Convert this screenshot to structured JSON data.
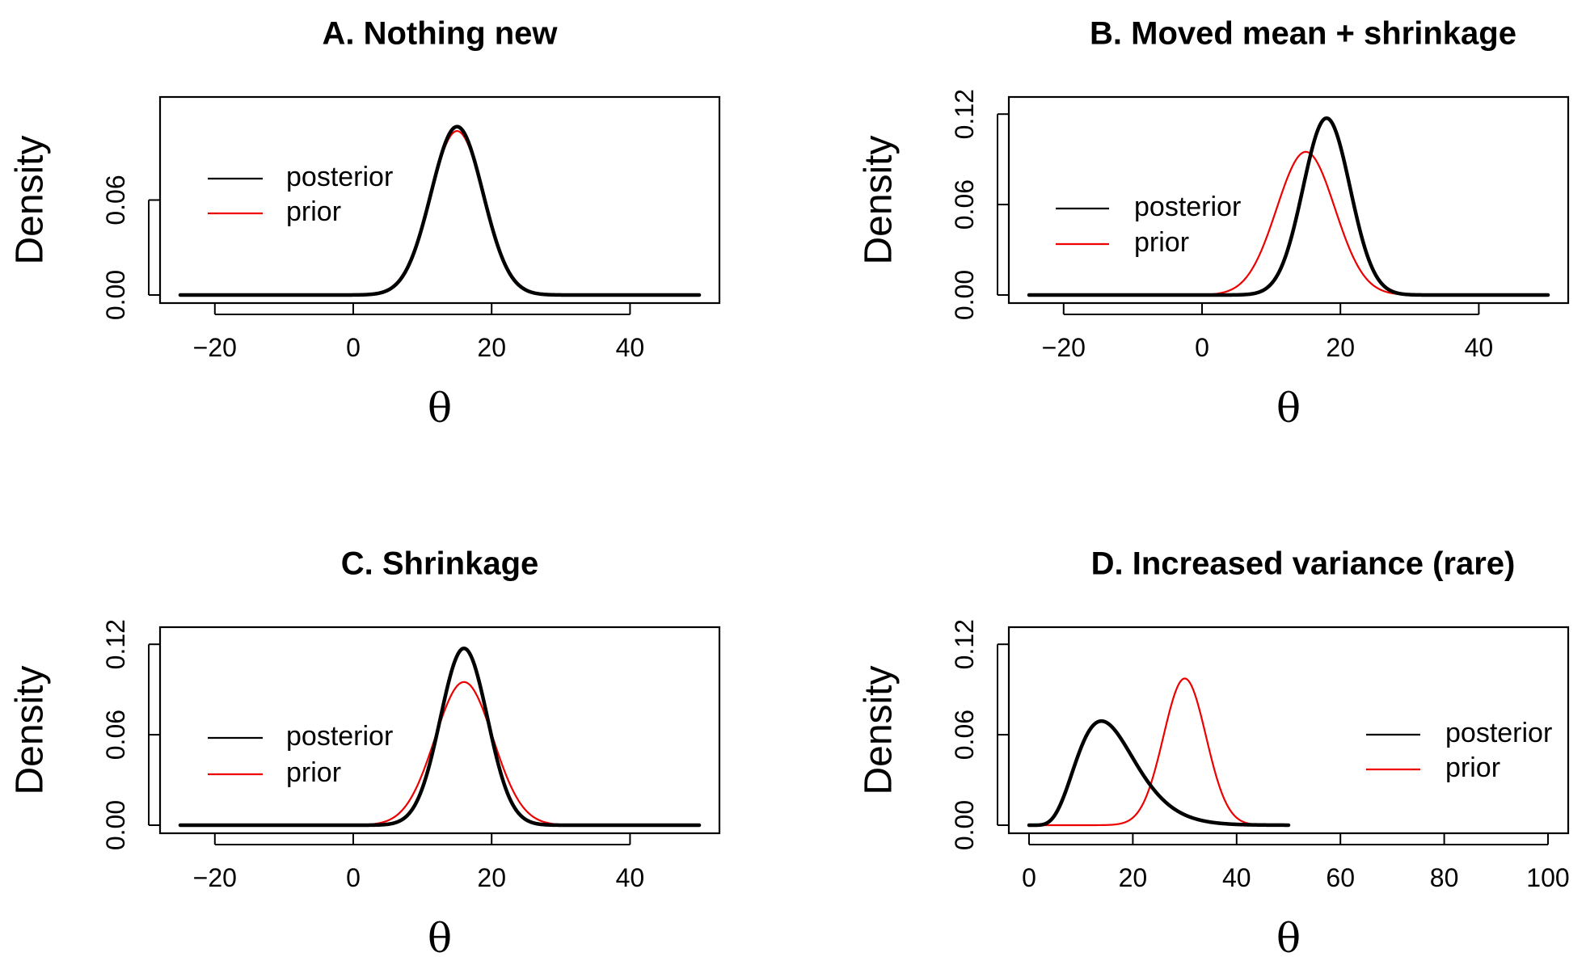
{
  "chart_data": [
    {
      "type": "line",
      "title": "A. Nothing new",
      "xlabel": "θ",
      "ylabel": "Density",
      "xlim": [
        -25,
        50
      ],
      "ylim": [
        0,
        0.12
      ],
      "xticks": [
        -20,
        0,
        20,
        40
      ],
      "xtick_labels": [
        "−20",
        "0",
        "20",
        "40"
      ],
      "yticks": [
        0,
        0.06
      ],
      "ytick_labels": [
        "0.00",
        "0.06"
      ],
      "legend": {
        "position": "left",
        "entries": [
          {
            "label": "posterior",
            "color": "#000000"
          },
          {
            "label": "prior",
            "color": "#ee0000"
          }
        ]
      },
      "series": [
        {
          "name": "posterior",
          "color": "#000000",
          "line_width": "thick",
          "distribution": "normal",
          "mean": 15,
          "sd": 3.75,
          "x_range": [
            -25,
            50
          ]
        },
        {
          "name": "prior",
          "color": "#ee0000",
          "line_width": "thin",
          "distribution": "normal",
          "mean": 15,
          "sd": 3.85,
          "x_range": [
            -25,
            50
          ]
        }
      ]
    },
    {
      "type": "line",
      "title": "B. Moved mean + shrinkage",
      "xlabel": "θ",
      "ylabel": "Density",
      "xlim": [
        -25,
        50
      ],
      "ylim": [
        0,
        0.126
      ],
      "xticks": [
        -20,
        0,
        20,
        40
      ],
      "xtick_labels": [
        "−20",
        "0",
        "20",
        "40"
      ],
      "yticks": [
        0,
        0.06,
        0.12
      ],
      "ytick_labels": [
        "0.00",
        "0.06",
        "0.12"
      ],
      "legend": {
        "position": "left",
        "entries": [
          {
            "label": "posterior",
            "color": "#000000"
          },
          {
            "label": "prior",
            "color": "#ee0000"
          }
        ]
      },
      "series": [
        {
          "name": "posterior",
          "color": "#000000",
          "line_width": "thick",
          "distribution": "normal",
          "mean": 18,
          "sd": 3.4,
          "x_range": [
            -25,
            50
          ]
        },
        {
          "name": "prior",
          "color": "#ee0000",
          "line_width": "thin",
          "distribution": "normal",
          "mean": 15,
          "sd": 4.2,
          "x_range": [
            -25,
            50
          ]
        }
      ]
    },
    {
      "type": "line",
      "title": "C. Shrinkage",
      "xlabel": "θ",
      "ylabel": "Density",
      "xlim": [
        -25,
        50
      ],
      "ylim": [
        0,
        0.126
      ],
      "xticks": [
        -20,
        0,
        20,
        40
      ],
      "xtick_labels": [
        "−20",
        "0",
        "20",
        "40"
      ],
      "yticks": [
        0,
        0.06,
        0.12
      ],
      "ytick_labels": [
        "0.00",
        "0.06",
        "0.12"
      ],
      "legend": {
        "position": "left",
        "entries": [
          {
            "label": "posterior",
            "color": "#000000"
          },
          {
            "label": "prior",
            "color": "#ee0000"
          }
        ]
      },
      "series": [
        {
          "name": "posterior",
          "color": "#000000",
          "line_width": "thick",
          "distribution": "normal",
          "mean": 16,
          "sd": 3.4,
          "x_range": [
            -25,
            50
          ]
        },
        {
          "name": "prior",
          "color": "#ee0000",
          "line_width": "thin",
          "distribution": "normal",
          "mean": 16,
          "sd": 4.2,
          "x_range": [
            -25,
            50
          ]
        }
      ]
    },
    {
      "type": "line",
      "title": "D. Increased variance (rare)",
      "xlabel": "θ",
      "ylabel": "Density",
      "xlim": [
        0,
        100
      ],
      "ylim": [
        0,
        0.126
      ],
      "xticks": [
        0,
        20,
        40,
        60,
        80,
        100
      ],
      "xtick_labels": [
        "0",
        "20",
        "40",
        "60",
        "80",
        "100"
      ],
      "yticks": [
        0,
        0.06,
        0.12
      ],
      "ytick_labels": [
        "0.00",
        "0.06",
        "0.12"
      ],
      "legend": {
        "position": "right",
        "entries": [
          {
            "label": "posterior",
            "color": "#000000"
          },
          {
            "label": "prior",
            "color": "#ee0000"
          }
        ]
      },
      "series": [
        {
          "name": "posterior",
          "color": "#000000",
          "line_width": "thick",
          "distribution": "gamma",
          "shape": 7,
          "rate": 0.43,
          "x_range": [
            0,
            50
          ]
        },
        {
          "name": "prior",
          "color": "#ee0000",
          "line_width": "thin",
          "distribution": "normal",
          "mean": 30,
          "sd": 4.1,
          "x_range": [
            0,
            50
          ]
        }
      ]
    }
  ]
}
